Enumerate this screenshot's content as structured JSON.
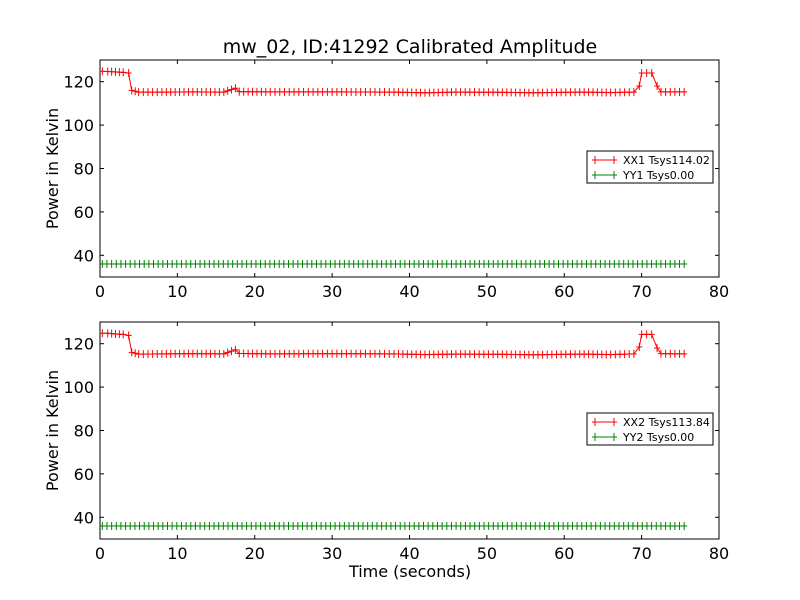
{
  "chart_data": {
    "title": "mw_02, ID:41292 Calibrated Amplitude",
    "xlabel": "Time (seconds)",
    "xlim": [
      0,
      80
    ],
    "xticks": [
      0,
      10,
      20,
      30,
      40,
      50,
      60,
      70,
      80
    ],
    "panels": [
      {
        "type": "line",
        "ylabel": "Power in Kelvin",
        "ylim": [
          30,
          130
        ],
        "yticks": [
          40,
          60,
          80,
          100,
          120
        ],
        "legend_position": "center-right",
        "grid": false,
        "series": [
          {
            "name": "XX1 Tsys114.02",
            "color": "#ff0000",
            "marker": "+",
            "points": [
              [
                0.3,
                124.8
              ],
              [
                1,
                124.7
              ],
              [
                2,
                124.5
              ],
              [
                3,
                124.3
              ],
              [
                3.7,
                124
              ],
              [
                4.1,
                116
              ],
              [
                5,
                115.2
              ],
              [
                8,
                115.2
              ],
              [
                12,
                115.3
              ],
              [
                16,
                115.2
              ],
              [
                17.5,
                117
              ],
              [
                18,
                115.4
              ],
              [
                22,
                115.3
              ],
              [
                30,
                115.3
              ],
              [
                38,
                115.2
              ],
              [
                42,
                114.9
              ],
              [
                46,
                115.2
              ],
              [
                52,
                115.1
              ],
              [
                56,
                114.9
              ],
              [
                62,
                115.2
              ],
              [
                66,
                115
              ],
              [
                69,
                115.2
              ],
              [
                69.7,
                118
              ],
              [
                70,
                124
              ],
              [
                71.3,
                124
              ],
              [
                72,
                118
              ],
              [
                72.5,
                115.3
              ],
              [
                75.5,
                115.3
              ]
            ]
          },
          {
            "name": "YY1 Tsys0.00",
            "color": "#008000",
            "marker": "+",
            "points": [
              [
                0.3,
                36
              ],
              [
                75.5,
                36
              ]
            ]
          }
        ]
      },
      {
        "type": "line",
        "ylabel": "Power in Kelvin",
        "ylim": [
          30,
          130
        ],
        "yticks": [
          40,
          60,
          80,
          100,
          120
        ],
        "legend_position": "center-right",
        "grid": false,
        "series": [
          {
            "name": "XX2 Tsys113.84",
            "color": "#ff0000",
            "marker": "+",
            "points": [
              [
                0.3,
                124.8
              ],
              [
                1,
                124.8
              ],
              [
                2,
                124.5
              ],
              [
                3,
                124.3
              ],
              [
                3.7,
                123.8
              ],
              [
                4.1,
                116
              ],
              [
                5,
                115.2
              ],
              [
                8,
                115.3
              ],
              [
                12,
                115.4
              ],
              [
                16,
                115.3
              ],
              [
                17.5,
                117.2
              ],
              [
                18,
                115.5
              ],
              [
                22,
                115.3
              ],
              [
                30,
                115.4
              ],
              [
                38,
                115.3
              ],
              [
                42,
                115
              ],
              [
                46,
                115.2
              ],
              [
                52,
                115.1
              ],
              [
                56,
                114.9
              ],
              [
                62,
                115.2
              ],
              [
                66,
                115
              ],
              [
                69,
                115.3
              ],
              [
                69.7,
                118.5
              ],
              [
                70,
                124.3
              ],
              [
                71.3,
                124.3
              ],
              [
                72,
                118
              ],
              [
                72.5,
                115.4
              ],
              [
                75.5,
                115.3
              ]
            ]
          },
          {
            "name": "YY2 Tsys0.00",
            "color": "#008000",
            "marker": "+",
            "points": [
              [
                0.3,
                36
              ],
              [
                75.5,
                36
              ]
            ]
          }
        ]
      }
    ]
  }
}
